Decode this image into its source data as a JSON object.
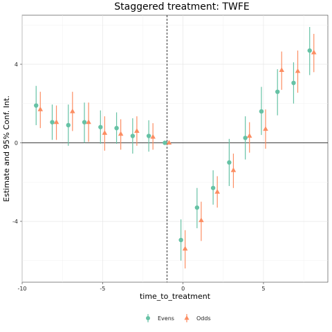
{
  "chart_data": {
    "type": "scatter",
    "subtype": "point-range",
    "title": "Staggered treatment: TWFE",
    "xlabel": "time_to_treatment",
    "ylabel": "Estimate and 95% Conf. Int.",
    "xlim": [
      -10,
      9
    ],
    "ylim": [
      -7.1,
      6.5
    ],
    "xticks": [
      -10,
      -5,
      0,
      5
    ],
    "xtick_labels": [
      "-10",
      "-5",
      "0",
      "5"
    ],
    "yticks": [
      -4,
      0,
      4
    ],
    "ytick_labels": [
      "-4",
      "0",
      "4"
    ],
    "reference_hline": 0,
    "reference_vline": -1,
    "grid": true,
    "legend_position": "bottom",
    "dodge": 0.26,
    "series": [
      {
        "name": "Evens",
        "color": "#66c2a5",
        "marker": "circle",
        "points": [
          {
            "x": -9,
            "y": 1.9,
            "lo": 0.9,
            "hi": 2.9
          },
          {
            "x": -8,
            "y": 1.05,
            "lo": 0.15,
            "hi": 1.95
          },
          {
            "x": -7,
            "y": 0.9,
            "lo": -0.15,
            "hi": 1.95
          },
          {
            "x": -6,
            "y": 1.05,
            "lo": 0.0,
            "hi": 2.05
          },
          {
            "x": -5,
            "y": 0.8,
            "lo": -0.05,
            "hi": 1.65
          },
          {
            "x": -4,
            "y": 0.75,
            "lo": -0.05,
            "hi": 1.55
          },
          {
            "x": -3,
            "y": 0.35,
            "lo": -0.55,
            "hi": 1.25
          },
          {
            "x": -2,
            "y": 0.35,
            "lo": -0.45,
            "hi": 1.15
          },
          {
            "x": -1,
            "y": 0.0,
            "lo": 0.0,
            "hi": 0.0
          },
          {
            "x": 0,
            "y": -4.95,
            "lo": -6.0,
            "hi": -3.9
          },
          {
            "x": 1,
            "y": -3.3,
            "lo": -4.35,
            "hi": -2.3
          },
          {
            "x": 2,
            "y": -2.3,
            "lo": -3.15,
            "hi": -1.4
          },
          {
            "x": 3,
            "y": -1.0,
            "lo": -2.2,
            "hi": 0.2
          },
          {
            "x": 4,
            "y": 0.25,
            "lo": -0.85,
            "hi": 1.35
          },
          {
            "x": 5,
            "y": 1.6,
            "lo": 0.4,
            "hi": 2.85
          },
          {
            "x": 6,
            "y": 2.6,
            "lo": 1.4,
            "hi": 3.75
          },
          {
            "x": 7,
            "y": 3.05,
            "lo": 2.0,
            "hi": 4.1
          },
          {
            "x": 8,
            "y": 4.7,
            "lo": 3.45,
            "hi": 5.9
          }
        ]
      },
      {
        "name": "Odds",
        "color": "#fc8d62",
        "marker": "triangle",
        "points": [
          {
            "x": -9,
            "y": 1.7,
            "lo": 0.75,
            "hi": 2.6
          },
          {
            "x": -8,
            "y": 1.05,
            "lo": 0.15,
            "hi": 1.9
          },
          {
            "x": -7,
            "y": 1.6,
            "lo": 0.6,
            "hi": 2.6
          },
          {
            "x": -6,
            "y": 1.05,
            "lo": 0.05,
            "hi": 2.05
          },
          {
            "x": -5,
            "y": 0.5,
            "lo": -0.4,
            "hi": 1.35
          },
          {
            "x": -4,
            "y": 0.45,
            "lo": -0.35,
            "hi": 1.2
          },
          {
            "x": -3,
            "y": 0.6,
            "lo": -0.15,
            "hi": 1.35
          },
          {
            "x": -2,
            "y": 0.3,
            "lo": -0.35,
            "hi": 1.0
          },
          {
            "x": -1,
            "y": 0.0,
            "lo": 0.0,
            "hi": 0.0
          },
          {
            "x": 0,
            "y": -5.4,
            "lo": -6.4,
            "hi": -4.45
          },
          {
            "x": 1,
            "y": -3.95,
            "lo": -5.0,
            "hi": -3.0
          },
          {
            "x": 2,
            "y": -2.5,
            "lo": -3.3,
            "hi": -1.7
          },
          {
            "x": 3,
            "y": -1.4,
            "lo": -2.3,
            "hi": -0.55
          },
          {
            "x": 4,
            "y": 0.35,
            "lo": -0.5,
            "hi": 1.05
          },
          {
            "x": 5,
            "y": 0.7,
            "lo": -0.3,
            "hi": 1.7
          },
          {
            "x": 6,
            "y": 3.7,
            "lo": 2.7,
            "hi": 4.65
          },
          {
            "x": 7,
            "y": 3.65,
            "lo": 2.55,
            "hi": 4.7
          },
          {
            "x": 8,
            "y": 4.6,
            "lo": 3.6,
            "hi": 5.55
          }
        ]
      }
    ]
  }
}
